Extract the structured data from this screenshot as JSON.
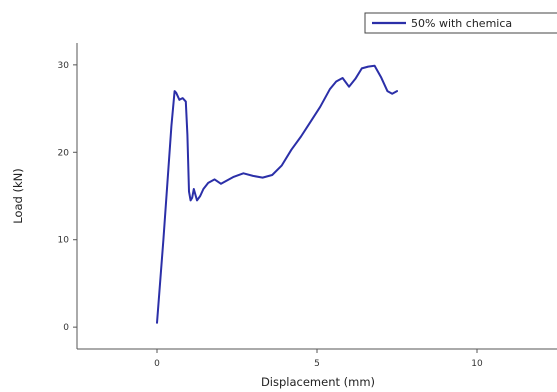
{
  "chart_data": {
    "type": "line",
    "xlabel": "Displacement (mm)",
    "ylabel": "Load (kN)",
    "xlim": [
      -2.5,
      12.5
    ],
    "ylim": [
      -2.5,
      32.5
    ],
    "xticks": [
      0,
      5,
      10
    ],
    "yticks": [
      0,
      10,
      20,
      30
    ],
    "grid": false,
    "legend_position": "top-right",
    "series": [
      {
        "name": "50% with chemica",
        "color": "#2b2fa8",
        "x": [
          0.0,
          0.2,
          0.45,
          0.55,
          0.6,
          0.7,
          0.8,
          0.9,
          0.95,
          1.0,
          1.05,
          1.1,
          1.15,
          1.25,
          1.35,
          1.45,
          1.6,
          1.8,
          2.0,
          2.2,
          2.4,
          2.7,
          3.0,
          3.3,
          3.6,
          3.9,
          4.2,
          4.5,
          4.8,
          5.1,
          5.4,
          5.6,
          5.8,
          6.0,
          6.2,
          6.4,
          6.6,
          6.8,
          7.0,
          7.2,
          7.35,
          7.5
        ],
        "y": [
          0.5,
          10.0,
          23.0,
          27.0,
          26.8,
          26.0,
          26.2,
          25.8,
          22.0,
          15.5,
          14.5,
          14.8,
          15.8,
          14.5,
          15.0,
          15.8,
          16.5,
          16.9,
          16.4,
          16.8,
          17.2,
          17.6,
          17.3,
          17.1,
          17.4,
          18.5,
          20.3,
          21.8,
          23.5,
          25.2,
          27.2,
          28.1,
          28.5,
          27.5,
          28.4,
          29.6,
          29.8,
          29.9,
          28.6,
          27.0,
          26.7,
          27.0
        ]
      }
    ]
  }
}
